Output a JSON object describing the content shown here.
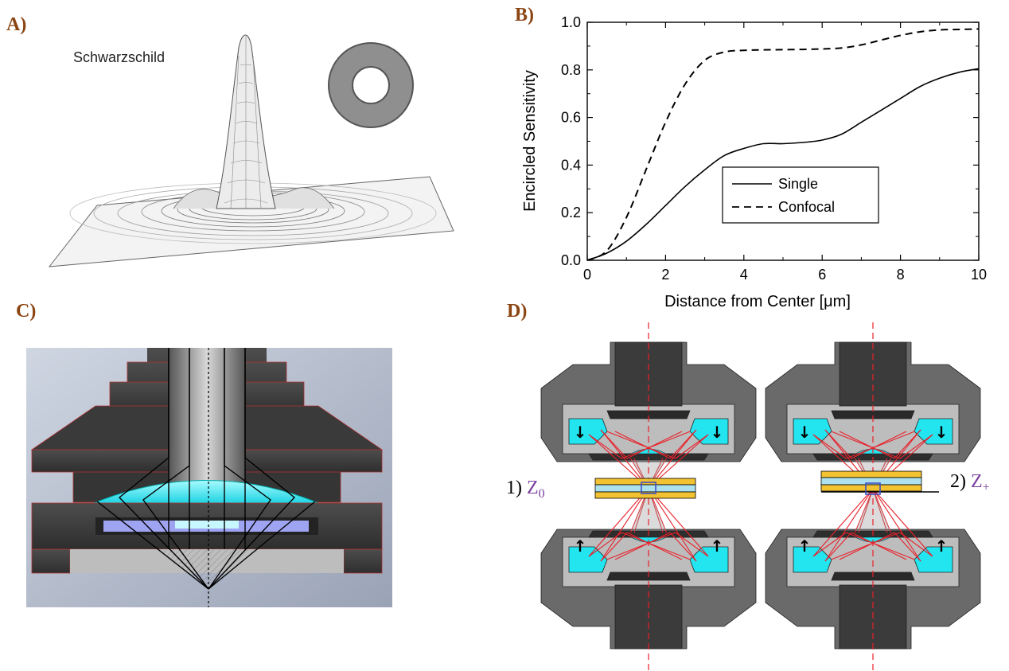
{
  "panels": {
    "a": {
      "letter": "A)",
      "title": "Schwarzschild"
    },
    "b": {
      "letter": "B)"
    },
    "c": {
      "letter": "C)"
    },
    "d": {
      "letter": "D)",
      "label_z0_prefix": "1) ",
      "label_z0": "Z",
      "label_z0_sub": "0",
      "label_zp_prefix": "2) ",
      "label_zp": "Z",
      "label_zp_sub": "+"
    }
  },
  "colors": {
    "panel_letter": "#8B4513",
    "cyan": "#22e5f0",
    "ray_red": "#e8202a",
    "z_label": "#7a3fa0",
    "yellow": "#f2c230"
  },
  "chart_data": {
    "type": "line",
    "xlabel": "Distance from Center [μm]",
    "ylabel": "Encircled Sensitivity",
    "xlim": [
      0,
      10
    ],
    "ylim": [
      0,
      1.0
    ],
    "xticks": [
      "0",
      "2",
      "4",
      "6",
      "8",
      "10"
    ],
    "yticks": [
      "0.0",
      "0.2",
      "0.4",
      "0.6",
      "0.8",
      "1.0"
    ],
    "legend_position": "lower-right",
    "series": [
      {
        "name": "Single",
        "style": "solid",
        "x": [
          0,
          0.5,
          1.0,
          1.5,
          2.0,
          2.5,
          3.0,
          3.5,
          4.0,
          4.5,
          5.0,
          5.5,
          6.0,
          6.5,
          7.0,
          7.5,
          8.0,
          8.5,
          9.0,
          9.5,
          10.0
        ],
        "y": [
          0.0,
          0.03,
          0.08,
          0.15,
          0.23,
          0.31,
          0.38,
          0.44,
          0.47,
          0.49,
          0.49,
          0.495,
          0.505,
          0.53,
          0.58,
          0.63,
          0.68,
          0.73,
          0.765,
          0.79,
          0.805
        ]
      },
      {
        "name": "Confocal",
        "style": "dashed",
        "x": [
          0,
          0.5,
          1.0,
          1.5,
          2.0,
          2.5,
          3.0,
          3.5,
          4.0,
          4.5,
          5.0,
          5.5,
          6.0,
          6.5,
          7.0,
          7.5,
          8.0,
          8.5,
          9.0,
          9.5,
          10.0
        ],
        "y": [
          0.0,
          0.04,
          0.18,
          0.38,
          0.58,
          0.74,
          0.84,
          0.875,
          0.882,
          0.884,
          0.885,
          0.886,
          0.888,
          0.892,
          0.905,
          0.925,
          0.945,
          0.96,
          0.968,
          0.97,
          0.972
        ]
      }
    ]
  }
}
